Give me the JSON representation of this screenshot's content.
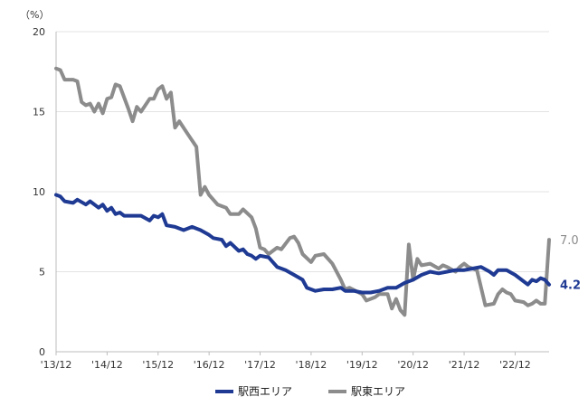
{
  "chart_data": {
    "type": "line",
    "unit_label": "（%）",
    "ylim": [
      0,
      20
    ],
    "yticks": [
      0,
      5,
      10,
      15,
      20
    ],
    "xlim": [
      2013.917,
      2023.583
    ],
    "xticks": [
      {
        "label": "'13/12",
        "x": 2013.917
      },
      {
        "label": "'14/12",
        "x": 2014.917
      },
      {
        "label": "'15/12",
        "x": 2015.917
      },
      {
        "label": "'16/12",
        "x": 2016.917
      },
      {
        "label": "'17/12",
        "x": 2017.917
      },
      {
        "label": "'18/12",
        "x": 2018.917
      },
      {
        "label": "'19/12",
        "x": 2019.917
      },
      {
        "label": "'20/12",
        "x": 2020.917
      },
      {
        "label": "'21/12",
        "x": 2021.917
      },
      {
        "label": "'22/12",
        "x": 2022.917
      }
    ],
    "legend_position": "bottom",
    "series": [
      {
        "name": "駅西エリア",
        "color": "#1f3a93",
        "end_label": "4.2",
        "points": [
          [
            2013.917,
            9.8
          ],
          [
            2014.0,
            9.7
          ],
          [
            2014.083,
            9.4
          ],
          [
            2014.25,
            9.3
          ],
          [
            2014.333,
            9.5
          ],
          [
            2014.5,
            9.2
          ],
          [
            2014.583,
            9.4
          ],
          [
            2014.75,
            9.0
          ],
          [
            2014.833,
            9.2
          ],
          [
            2014.917,
            8.8
          ],
          [
            2015.0,
            9.0
          ],
          [
            2015.083,
            8.6
          ],
          [
            2015.167,
            8.7
          ],
          [
            2015.25,
            8.5
          ],
          [
            2015.417,
            8.5
          ],
          [
            2015.583,
            8.5
          ],
          [
            2015.75,
            8.2
          ],
          [
            2015.833,
            8.5
          ],
          [
            2015.917,
            8.4
          ],
          [
            2016.0,
            8.6
          ],
          [
            2016.083,
            7.9
          ],
          [
            2016.25,
            7.8
          ],
          [
            2016.417,
            7.6
          ],
          [
            2016.583,
            7.8
          ],
          [
            2016.75,
            7.6
          ],
          [
            2016.917,
            7.3
          ],
          [
            2017.0,
            7.1
          ],
          [
            2017.167,
            7.0
          ],
          [
            2017.25,
            6.6
          ],
          [
            2017.333,
            6.8
          ],
          [
            2017.5,
            6.3
          ],
          [
            2017.583,
            6.4
          ],
          [
            2017.667,
            6.1
          ],
          [
            2017.75,
            6.0
          ],
          [
            2017.833,
            5.8
          ],
          [
            2017.917,
            6.0
          ],
          [
            2018.083,
            5.9
          ],
          [
            2018.25,
            5.3
          ],
          [
            2018.417,
            5.1
          ],
          [
            2018.583,
            4.8
          ],
          [
            2018.75,
            4.5
          ],
          [
            2018.833,
            4.0
          ],
          [
            2019.0,
            3.8
          ],
          [
            2019.167,
            3.9
          ],
          [
            2019.333,
            3.9
          ],
          [
            2019.5,
            4.0
          ],
          [
            2019.583,
            3.8
          ],
          [
            2019.75,
            3.8
          ],
          [
            2019.917,
            3.7
          ],
          [
            2020.083,
            3.7
          ],
          [
            2020.25,
            3.8
          ],
          [
            2020.417,
            4.0
          ],
          [
            2020.583,
            4.0
          ],
          [
            2020.75,
            4.3
          ],
          [
            2020.917,
            4.5
          ],
          [
            2021.083,
            4.8
          ],
          [
            2021.25,
            5.0
          ],
          [
            2021.417,
            4.9
          ],
          [
            2021.583,
            5.0
          ],
          [
            2021.75,
            5.1
          ],
          [
            2021.917,
            5.1
          ],
          [
            2022.083,
            5.2
          ],
          [
            2022.25,
            5.3
          ],
          [
            2022.417,
            5.0
          ],
          [
            2022.5,
            4.8
          ],
          [
            2022.583,
            5.1
          ],
          [
            2022.75,
            5.1
          ],
          [
            2022.917,
            4.8
          ],
          [
            2023.083,
            4.4
          ],
          [
            2023.167,
            4.2
          ],
          [
            2023.25,
            4.5
          ],
          [
            2023.333,
            4.4
          ],
          [
            2023.417,
            4.6
          ],
          [
            2023.5,
            4.5
          ],
          [
            2023.583,
            4.2
          ]
        ]
      },
      {
        "name": "駅東エリア",
        "color": "#8c8c8c",
        "end_label": "7.0",
        "points": [
          [
            2013.917,
            17.7
          ],
          [
            2014.0,
            17.6
          ],
          [
            2014.083,
            17.0
          ],
          [
            2014.25,
            17.0
          ],
          [
            2014.333,
            16.9
          ],
          [
            2014.417,
            15.6
          ],
          [
            2014.5,
            15.4
          ],
          [
            2014.583,
            15.5
          ],
          [
            2014.667,
            15.0
          ],
          [
            2014.75,
            15.5
          ],
          [
            2014.833,
            14.9
          ],
          [
            2014.917,
            15.8
          ],
          [
            2015.0,
            15.9
          ],
          [
            2015.083,
            16.7
          ],
          [
            2015.167,
            16.6
          ],
          [
            2015.333,
            15.2
          ],
          [
            2015.417,
            14.4
          ],
          [
            2015.5,
            15.3
          ],
          [
            2015.583,
            15.0
          ],
          [
            2015.75,
            15.8
          ],
          [
            2015.833,
            15.8
          ],
          [
            2015.917,
            16.4
          ],
          [
            2016.0,
            16.6
          ],
          [
            2016.083,
            15.8
          ],
          [
            2016.167,
            16.2
          ],
          [
            2016.25,
            14.0
          ],
          [
            2016.333,
            14.4
          ],
          [
            2016.5,
            13.6
          ],
          [
            2016.667,
            12.8
          ],
          [
            2016.75,
            9.8
          ],
          [
            2016.833,
            10.3
          ],
          [
            2016.917,
            9.8
          ],
          [
            2017.083,
            9.2
          ],
          [
            2017.25,
            9.0
          ],
          [
            2017.333,
            8.6
          ],
          [
            2017.5,
            8.6
          ],
          [
            2017.583,
            8.9
          ],
          [
            2017.75,
            8.4
          ],
          [
            2017.833,
            7.7
          ],
          [
            2017.917,
            6.5
          ],
          [
            2018.0,
            6.4
          ],
          [
            2018.083,
            6.1
          ],
          [
            2018.25,
            6.5
          ],
          [
            2018.333,
            6.4
          ],
          [
            2018.5,
            7.1
          ],
          [
            2018.583,
            7.2
          ],
          [
            2018.667,
            6.8
          ],
          [
            2018.75,
            6.1
          ],
          [
            2018.917,
            5.6
          ],
          [
            2019.0,
            6.0
          ],
          [
            2019.167,
            6.1
          ],
          [
            2019.333,
            5.5
          ],
          [
            2019.5,
            4.5
          ],
          [
            2019.583,
            3.9
          ],
          [
            2019.667,
            4.0
          ],
          [
            2019.917,
            3.6
          ],
          [
            2020.0,
            3.2
          ],
          [
            2020.167,
            3.4
          ],
          [
            2020.25,
            3.6
          ],
          [
            2020.417,
            3.6
          ],
          [
            2020.5,
            2.7
          ],
          [
            2020.583,
            3.3
          ],
          [
            2020.667,
            2.6
          ],
          [
            2020.75,
            2.3
          ],
          [
            2020.833,
            6.7
          ],
          [
            2020.917,
            4.5
          ],
          [
            2021.0,
            5.8
          ],
          [
            2021.083,
            5.4
          ],
          [
            2021.25,
            5.5
          ],
          [
            2021.417,
            5.2
          ],
          [
            2021.5,
            5.4
          ],
          [
            2021.583,
            5.3
          ],
          [
            2021.75,
            5.0
          ],
          [
            2021.833,
            5.3
          ],
          [
            2021.917,
            5.5
          ],
          [
            2022.0,
            5.3
          ],
          [
            2022.167,
            5.1
          ],
          [
            2022.333,
            2.9
          ],
          [
            2022.5,
            3.0
          ],
          [
            2022.583,
            3.6
          ],
          [
            2022.667,
            3.9
          ],
          [
            2022.75,
            3.7
          ],
          [
            2022.833,
            3.6
          ],
          [
            2022.917,
            3.2
          ],
          [
            2023.083,
            3.1
          ],
          [
            2023.167,
            2.9
          ],
          [
            2023.25,
            3.0
          ],
          [
            2023.333,
            3.2
          ],
          [
            2023.417,
            3.0
          ],
          [
            2023.5,
            3.0
          ],
          [
            2023.583,
            7.0
          ]
        ]
      }
    ]
  }
}
